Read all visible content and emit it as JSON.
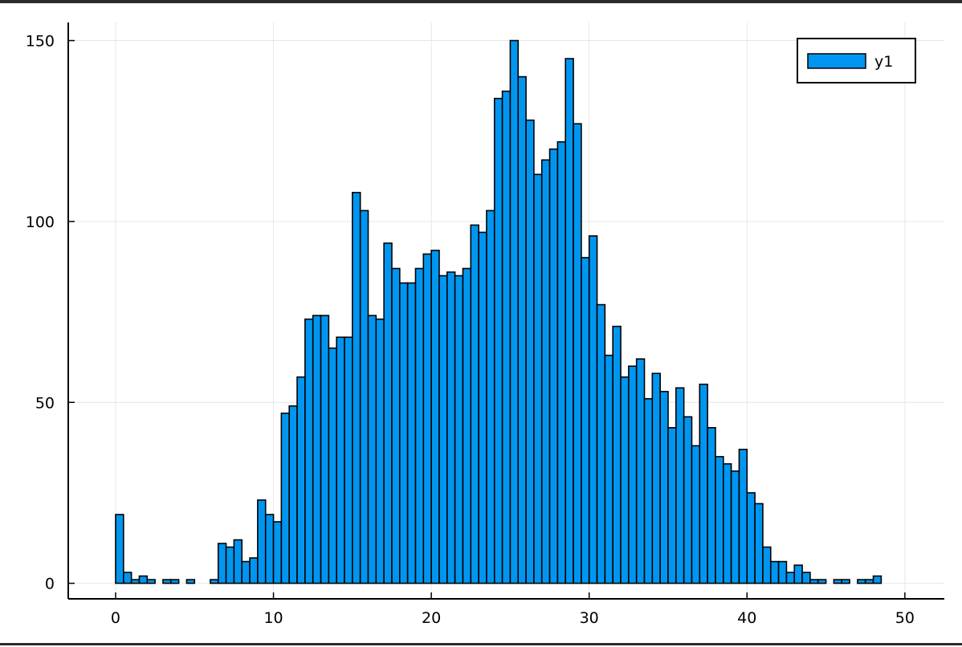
{
  "chart_data": {
    "type": "bar",
    "title": "",
    "xlabel": "",
    "ylabel": "",
    "xlim": [
      -3,
      52.5
    ],
    "ylim": [
      -4.3,
      155
    ],
    "bin_width": 0.5,
    "x_ticks": [
      0,
      10,
      20,
      30,
      40,
      50
    ],
    "x_tick_labels": [
      "0",
      "10",
      "20",
      "30",
      "40",
      "50"
    ],
    "y_ticks": [
      0,
      50,
      100,
      150
    ],
    "y_tick_labels": [
      "0",
      "50",
      "100",
      "150"
    ],
    "grid": true,
    "legend_position": "top-right",
    "bar_color": "#0096f0",
    "series": [
      {
        "name": "y1",
        "bins_start": [
          0,
          0.5,
          1,
          1.5,
          2,
          2.5,
          3,
          3.5,
          4,
          4.5,
          5,
          5.5,
          6,
          6.5,
          7,
          7.5,
          8,
          8.5,
          9,
          9.5,
          10,
          10.5,
          11,
          11.5,
          12,
          12.5,
          13,
          13.5,
          14,
          14.5,
          15,
          15.5,
          16,
          16.5,
          17,
          17.5,
          18,
          18.5,
          19,
          19.5,
          20,
          20.5,
          21,
          21.5,
          22,
          22.5,
          23,
          23.5,
          24,
          24.5,
          25,
          25.5,
          26,
          26.5,
          27,
          27.5,
          28,
          28.5,
          29,
          29.5,
          30,
          30.5,
          31,
          31.5,
          32,
          32.5,
          33,
          33.5,
          34,
          34.5,
          35,
          35.5,
          36,
          36.5,
          37,
          37.5,
          38,
          38.5,
          39,
          39.5,
          40,
          40.5,
          41,
          41.5,
          42,
          42.5,
          43,
          43.5,
          44,
          44.5,
          45,
          45.5,
          46,
          46.5,
          47,
          47.5,
          48
        ],
        "values": [
          19,
          3,
          1,
          2,
          1,
          0,
          1,
          1,
          0,
          1,
          0,
          0,
          1,
          11,
          10,
          12,
          6,
          7,
          23,
          19,
          17,
          47,
          49,
          57,
          73,
          74,
          74,
          65,
          68,
          68,
          108,
          103,
          74,
          73,
          94,
          87,
          83,
          83,
          87,
          91,
          92,
          85,
          86,
          85,
          87,
          99,
          97,
          103,
          134,
          136,
          150,
          140,
          128,
          113,
          117,
          120,
          122,
          145,
          127,
          90,
          96,
          77,
          63,
          71,
          57,
          60,
          62,
          51,
          58,
          53,
          43,
          54,
          46,
          38,
          55,
          43,
          35,
          33,
          31,
          37,
          25,
          22,
          10,
          6,
          6,
          3,
          5,
          3,
          1,
          1,
          0,
          1,
          1,
          0,
          1,
          1,
          2
        ]
      }
    ]
  }
}
